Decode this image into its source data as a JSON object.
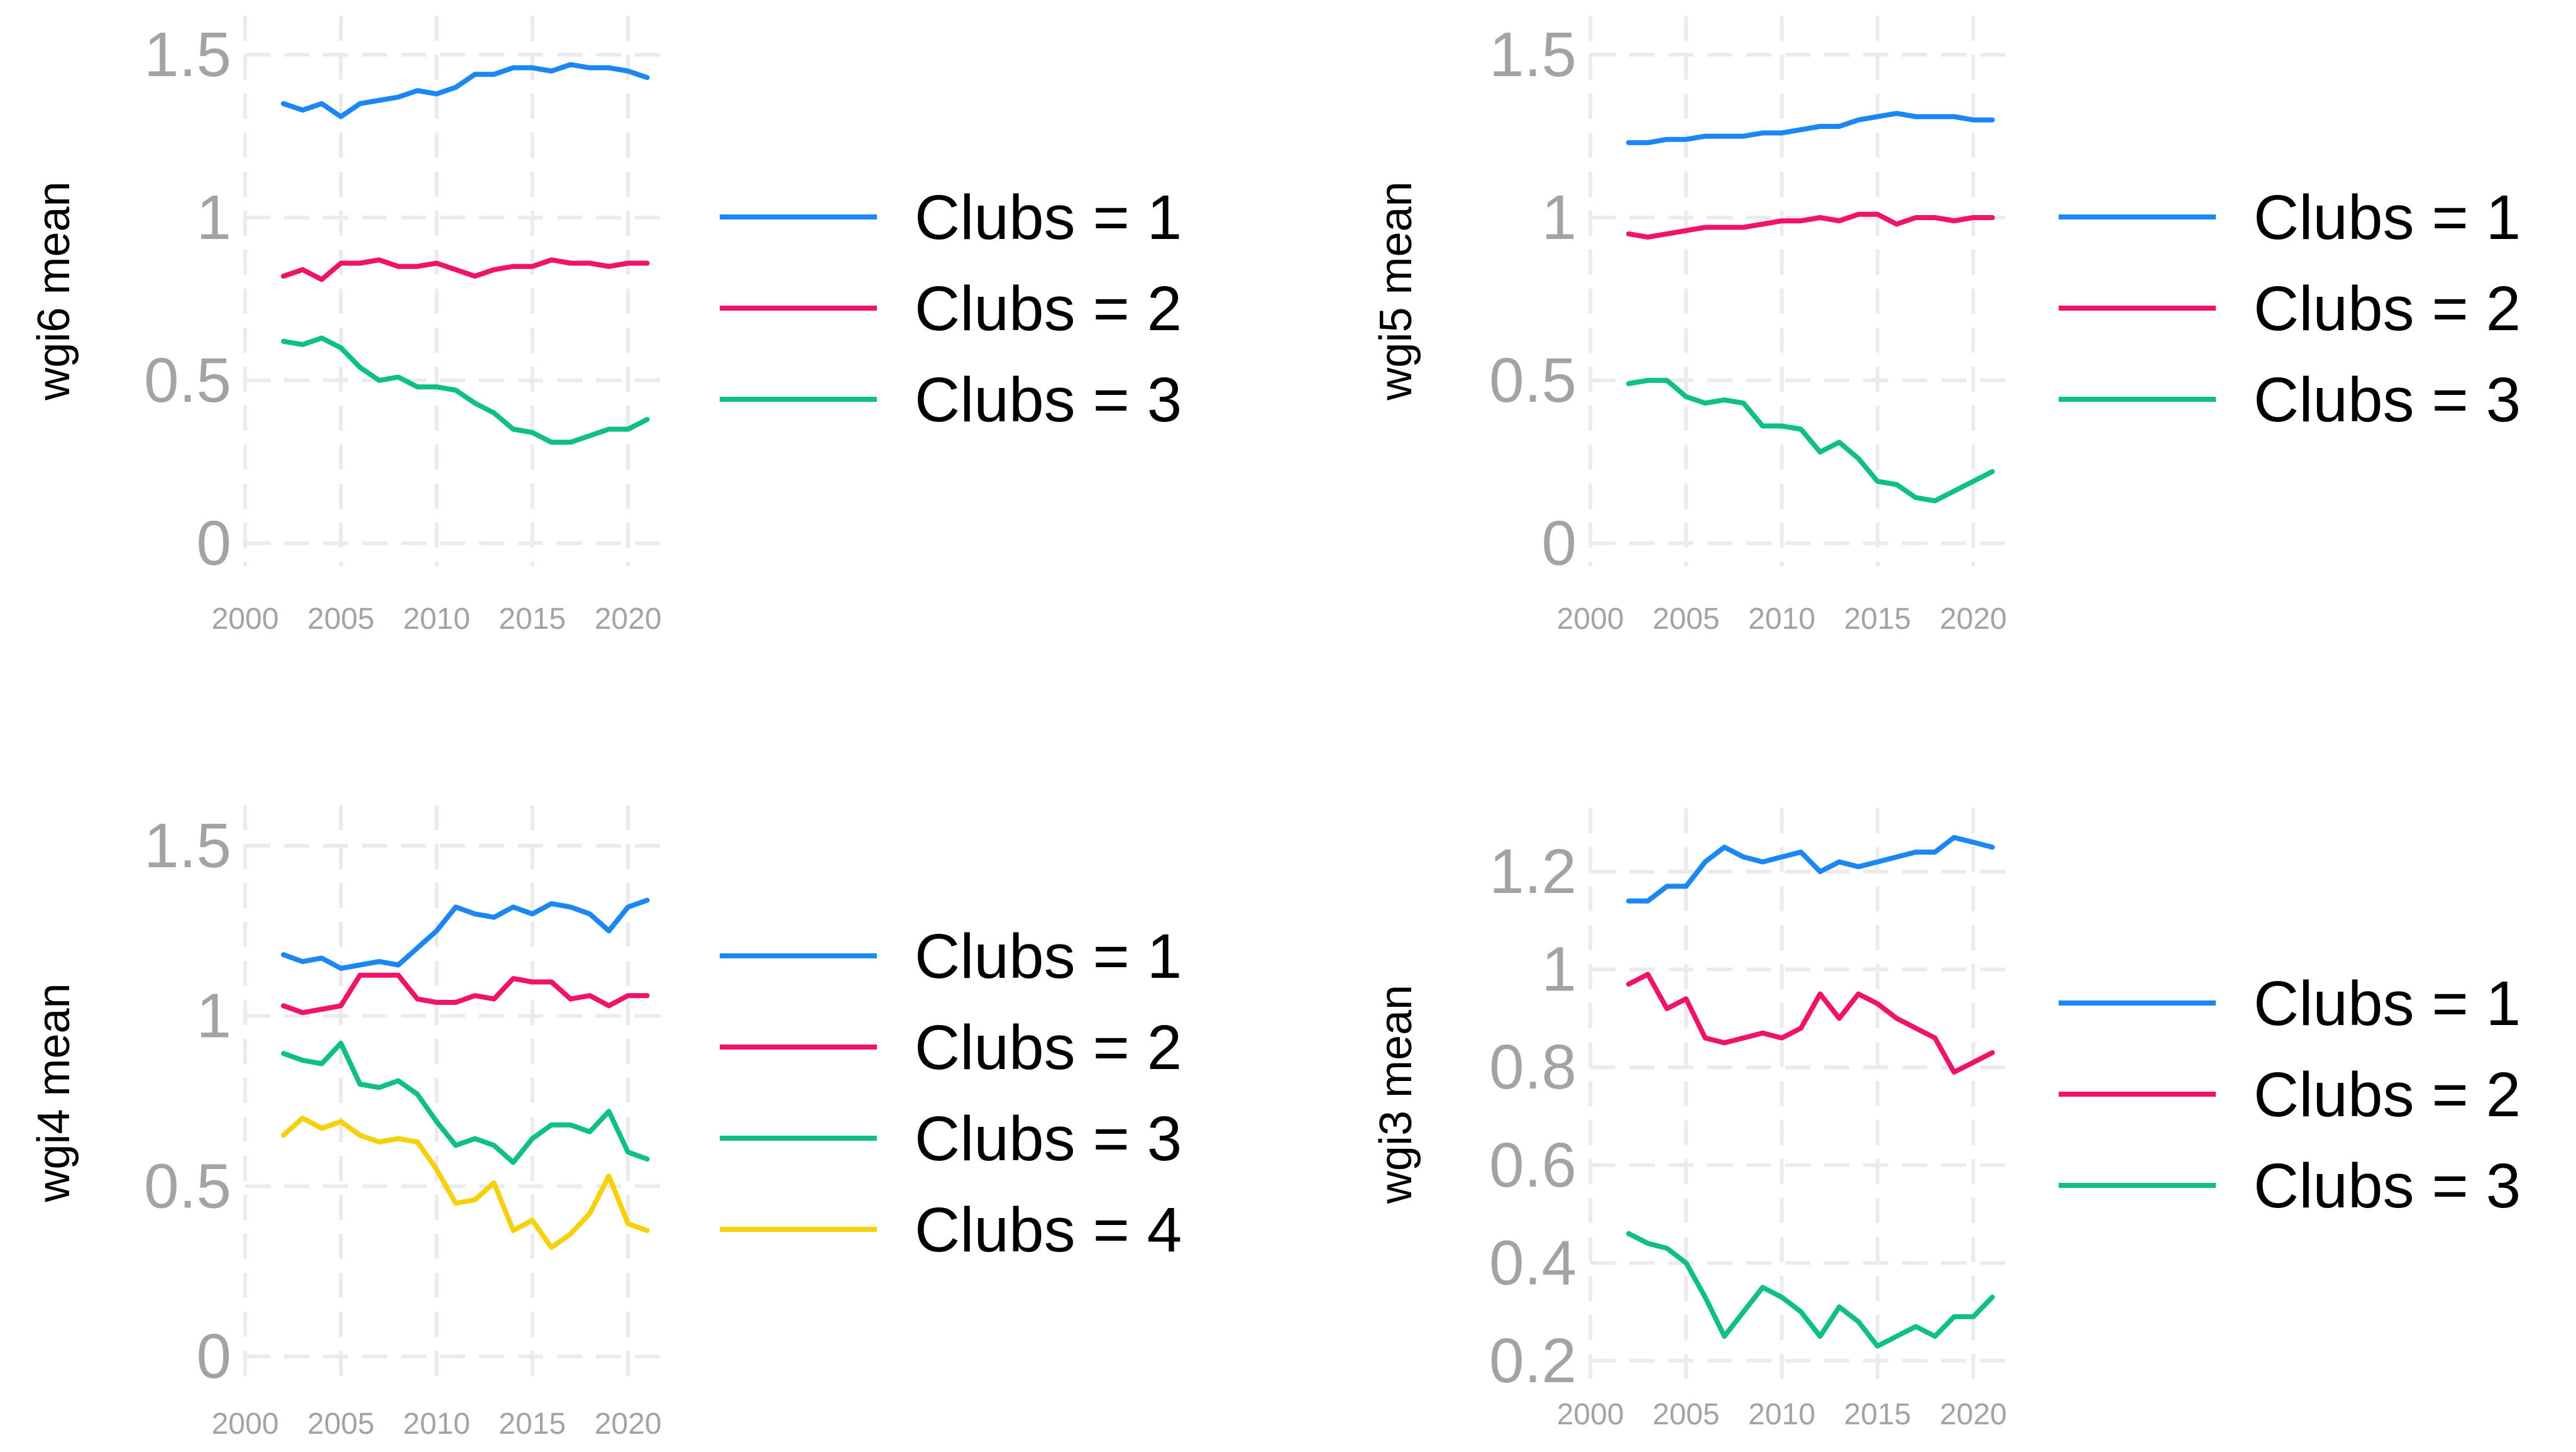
{
  "colors": {
    "club1": "#1a87f5",
    "club2": "#f01468",
    "club3": "#10c080",
    "club4": "#f5d10a",
    "grid": "#ebebeb",
    "tick_text": "#a3a3a3"
  },
  "chart_data": [
    {
      "type": "line",
      "title": "",
      "ylabel": "wgi6 mean",
      "xlabel": "",
      "xlim": [
        2000,
        2022
      ],
      "ylim": [
        -0.07,
        1.62
      ],
      "x_ticks": [
        "2000",
        "2005",
        "2010",
        "2015",
        "2020"
      ],
      "y_ticks": [
        "0",
        "0.5",
        "1",
        "1.5"
      ],
      "legend_position": "right",
      "x": [
        2002,
        2003,
        2004,
        2005,
        2006,
        2007,
        2008,
        2009,
        2010,
        2011,
        2012,
        2013,
        2014,
        2015,
        2016,
        2017,
        2018,
        2019,
        2020,
        2021
      ],
      "series": [
        {
          "name": "Clubs = 1",
          "color_key": "club1",
          "values": [
            1.35,
            1.33,
            1.35,
            1.31,
            1.35,
            1.36,
            1.37,
            1.39,
            1.38,
            1.4,
            1.44,
            1.44,
            1.46,
            1.46,
            1.45,
            1.47,
            1.46,
            1.46,
            1.45,
            1.43
          ]
        },
        {
          "name": "Clubs = 2",
          "color_key": "club2",
          "values": [
            0.82,
            0.84,
            0.81,
            0.86,
            0.86,
            0.87,
            0.85,
            0.85,
            0.86,
            0.84,
            0.82,
            0.84,
            0.85,
            0.85,
            0.87,
            0.86,
            0.86,
            0.85,
            0.86,
            0.86
          ]
        },
        {
          "name": "Clubs = 3",
          "color_key": "club3",
          "values": [
            0.62,
            0.61,
            0.63,
            0.6,
            0.54,
            0.5,
            0.51,
            0.48,
            0.48,
            0.47,
            0.43,
            0.4,
            0.35,
            0.34,
            0.31,
            0.31,
            0.33,
            0.35,
            0.35,
            0.38
          ]
        }
      ]
    },
    {
      "type": "line",
      "title": "",
      "ylabel": "wgi5 mean",
      "xlabel": "",
      "xlim": [
        2000,
        2022
      ],
      "ylim": [
        -0.07,
        1.62
      ],
      "x_ticks": [
        "2000",
        "2005",
        "2010",
        "2015",
        "2020"
      ],
      "y_ticks": [
        "0",
        "0.5",
        "1",
        "1.5"
      ],
      "legend_position": "right",
      "x": [
        2002,
        2003,
        2004,
        2005,
        2006,
        2007,
        2008,
        2009,
        2010,
        2011,
        2012,
        2013,
        2014,
        2015,
        2016,
        2017,
        2018,
        2019,
        2020,
        2021
      ],
      "series": [
        {
          "name": "Clubs = 1",
          "color_key": "club1",
          "values": [
            1.23,
            1.23,
            1.24,
            1.24,
            1.25,
            1.25,
            1.25,
            1.26,
            1.26,
            1.27,
            1.28,
            1.28,
            1.3,
            1.31,
            1.32,
            1.31,
            1.31,
            1.31,
            1.3,
            1.3
          ]
        },
        {
          "name": "Clubs = 2",
          "color_key": "club2",
          "values": [
            0.95,
            0.94,
            0.95,
            0.96,
            0.97,
            0.97,
            0.97,
            0.98,
            0.99,
            0.99,
            1.0,
            0.99,
            1.01,
            1.01,
            0.98,
            1.0,
            1.0,
            0.99,
            1.0,
            1.0
          ]
        },
        {
          "name": "Clubs = 3",
          "color_key": "club3",
          "values": [
            0.49,
            0.5,
            0.5,
            0.45,
            0.43,
            0.44,
            0.43,
            0.36,
            0.36,
            0.35,
            0.28,
            0.31,
            0.26,
            0.19,
            0.18,
            0.14,
            0.13,
            0.16,
            0.19,
            0.22
          ]
        }
      ]
    },
    {
      "type": "line",
      "title": "",
      "ylabel": "wgi4 mean",
      "xlabel": "",
      "xlim": [
        2000,
        2022
      ],
      "ylim": [
        -0.07,
        1.62
      ],
      "x_ticks": [
        "2000",
        "2005",
        "2010",
        "2015",
        "2020"
      ],
      "y_ticks": [
        "0",
        "0.5",
        "1",
        "1.5"
      ],
      "legend_position": "right",
      "x": [
        2002,
        2003,
        2004,
        2005,
        2006,
        2007,
        2008,
        2009,
        2010,
        2011,
        2012,
        2013,
        2014,
        2015,
        2016,
        2017,
        2018,
        2019,
        2020,
        2021
      ],
      "series": [
        {
          "name": "Clubs = 1",
          "color_key": "club1",
          "values": [
            1.18,
            1.16,
            1.17,
            1.14,
            1.15,
            1.16,
            1.15,
            1.2,
            1.25,
            1.32,
            1.3,
            1.29,
            1.32,
            1.3,
            1.33,
            1.32,
            1.3,
            1.25,
            1.32,
            1.34
          ]
        },
        {
          "name": "Clubs = 2",
          "color_key": "club2",
          "values": [
            1.03,
            1.01,
            1.02,
            1.03,
            1.12,
            1.12,
            1.12,
            1.05,
            1.04,
            1.04,
            1.06,
            1.05,
            1.11,
            1.1,
            1.1,
            1.05,
            1.06,
            1.03,
            1.06,
            1.06
          ]
        },
        {
          "name": "Clubs = 3",
          "color_key": "club3",
          "values": [
            0.89,
            0.87,
            0.86,
            0.92,
            0.8,
            0.79,
            0.81,
            0.77,
            0.69,
            0.62,
            0.64,
            0.62,
            0.57,
            0.64,
            0.68,
            0.68,
            0.66,
            0.72,
            0.6,
            0.58
          ]
        },
        {
          "name": "Clubs = 4",
          "color_key": "club4",
          "values": [
            0.65,
            0.7,
            0.67,
            0.69,
            0.65,
            0.63,
            0.64,
            0.63,
            0.55,
            0.45,
            0.46,
            0.51,
            0.37,
            0.4,
            0.32,
            0.36,
            0.42,
            0.53,
            0.39,
            0.37
          ]
        }
      ]
    },
    {
      "type": "line",
      "title": "",
      "ylabel": "wgi3 mean",
      "xlabel": "",
      "xlim": [
        2000,
        2022
      ],
      "ylim": [
        0.16,
        1.33
      ],
      "x_ticks": [
        "2000",
        "2005",
        "2010",
        "2015",
        "2020"
      ],
      "y_ticks": [
        "0.2",
        "0.4",
        "0.6",
        "0.8",
        "1",
        "1.2"
      ],
      "legend_position": "right",
      "x": [
        2002,
        2003,
        2004,
        2005,
        2006,
        2007,
        2008,
        2009,
        2010,
        2011,
        2012,
        2013,
        2014,
        2015,
        2016,
        2017,
        2018,
        2019,
        2020,
        2021
      ],
      "series": [
        {
          "name": "Clubs = 1",
          "color_key": "club1",
          "values": [
            1.14,
            1.14,
            1.17,
            1.17,
            1.22,
            1.25,
            1.23,
            1.22,
            1.23,
            1.24,
            1.2,
            1.22,
            1.21,
            1.22,
            1.23,
            1.24,
            1.24,
            1.27,
            1.26,
            1.25
          ]
        },
        {
          "name": "Clubs = 2",
          "color_key": "club2",
          "values": [
            0.97,
            0.99,
            0.92,
            0.94,
            0.86,
            0.85,
            0.86,
            0.87,
            0.86,
            0.88,
            0.95,
            0.9,
            0.95,
            0.93,
            0.9,
            0.88,
            0.86,
            0.79,
            0.81,
            0.83
          ]
        },
        {
          "name": "Clubs = 3",
          "color_key": "club3",
          "values": [
            0.46,
            0.44,
            0.43,
            0.4,
            0.33,
            0.25,
            0.3,
            0.35,
            0.33,
            0.3,
            0.25,
            0.31,
            0.28,
            0.23,
            0.25,
            0.27,
            0.25,
            0.29,
            0.29,
            0.33
          ]
        }
      ]
    }
  ]
}
